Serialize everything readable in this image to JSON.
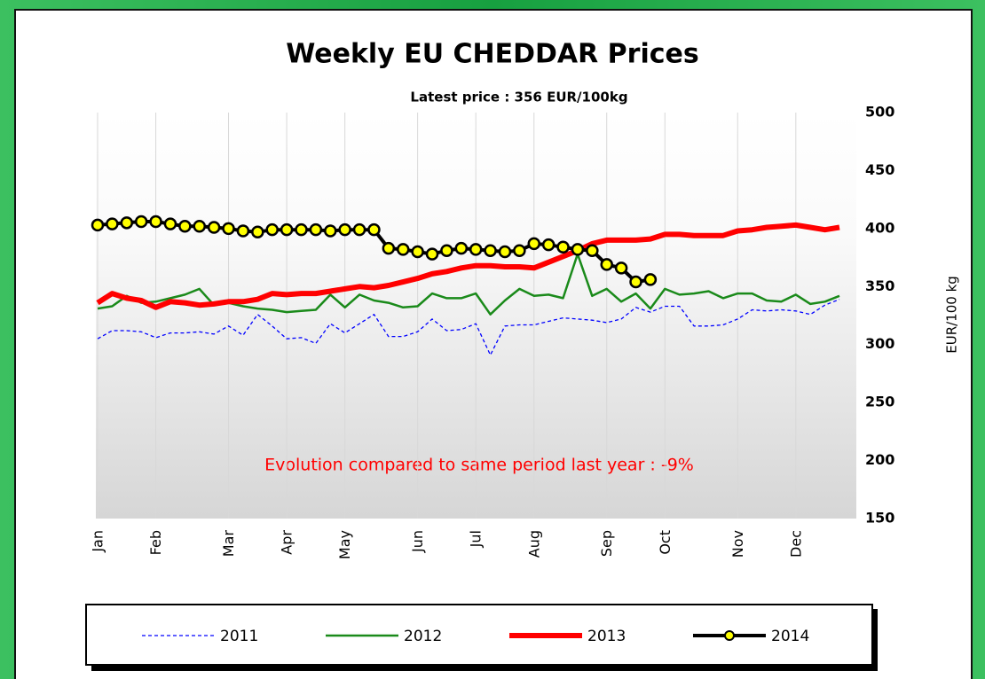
{
  "chart_data": {
    "type": "line",
    "title": "Weekly EU CHEDDAR Prices",
    "subtitle": "Latest price : 356 EUR/100kg",
    "y_label": "EUR/100 kg",
    "annotation": "Evolution compared to same period last year : -9%",
    "categories": [
      "Jan",
      null,
      null,
      null,
      "Feb",
      null,
      null,
      null,
      null,
      "Mar",
      null,
      null,
      null,
      "Apr",
      null,
      null,
      null,
      "May",
      null,
      null,
      null,
      null,
      "Jun",
      null,
      null,
      null,
      "Jul",
      null,
      null,
      null,
      "Aug",
      null,
      null,
      null,
      null,
      "Sep",
      null,
      null,
      null,
      "Oct",
      null,
      null,
      null,
      null,
      "Nov",
      null,
      null,
      null,
      "Dec",
      null,
      null,
      null
    ],
    "ylim": [
      150,
      500
    ],
    "yticks": [
      150,
      200,
      250,
      300,
      350,
      400,
      450,
      500
    ],
    "y_axis_side": "right",
    "grid": true,
    "series": [
      {
        "name": "2011",
        "color": "#0000ff",
        "dashed": true,
        "values": [
          305,
          312,
          312,
          311,
          306,
          310,
          310,
          311,
          309,
          316,
          308,
          326,
          316,
          305,
          306,
          301,
          318,
          310,
          318,
          326,
          307,
          307,
          311,
          322,
          312,
          313,
          318,
          291,
          316,
          317,
          317,
          320,
          323,
          322,
          321,
          319,
          322,
          332,
          328,
          333,
          333,
          316,
          316,
          317,
          322,
          330,
          329,
          330,
          329,
          326,
          334,
          339
        ]
      },
      {
        "name": "2012",
        "color": "#1a8a1a",
        "values": [
          331,
          333,
          342,
          336,
          337,
          340,
          343,
          348,
          334,
          336,
          333,
          331,
          330,
          328,
          329,
          330,
          343,
          332,
          343,
          338,
          336,
          332,
          333,
          344,
          340,
          340,
          344,
          326,
          338,
          348,
          342,
          343,
          340,
          378,
          342,
          348,
          337,
          344,
          331,
          348,
          343,
          344,
          346,
          340,
          344,
          344,
          338,
          337,
          343,
          335,
          337,
          342
        ]
      },
      {
        "name": "2013",
        "color": "#ff0000",
        "values": [
          336,
          344,
          340,
          338,
          332,
          337,
          336,
          334,
          335,
          337,
          337,
          339,
          344,
          343,
          344,
          344,
          346,
          348,
          350,
          349,
          351,
          354,
          357,
          361,
          363,
          366,
          368,
          368,
          367,
          367,
          366,
          371,
          376,
          381,
          387,
          390,
          390,
          390,
          391,
          395,
          395,
          394,
          394,
          394,
          398,
          399,
          401,
          402,
          403,
          401,
          399,
          401
        ]
      },
      {
        "name": "2014",
        "color": "#000000",
        "markers": true,
        "marker_color": "#ffff00",
        "values": [
          403,
          404,
          405,
          406,
          406,
          404,
          402,
          402,
          401,
          400,
          398,
          397,
          399,
          399,
          399,
          399,
          398,
          399,
          399,
          399,
          383,
          382,
          380,
          378,
          381,
          383,
          382,
          381,
          380,
          381,
          387,
          386,
          384,
          382,
          381,
          369,
          366,
          354,
          356,
          null,
          null,
          null,
          null,
          null,
          null,
          null,
          null,
          null,
          null,
          null,
          null,
          null
        ]
      }
    ]
  }
}
